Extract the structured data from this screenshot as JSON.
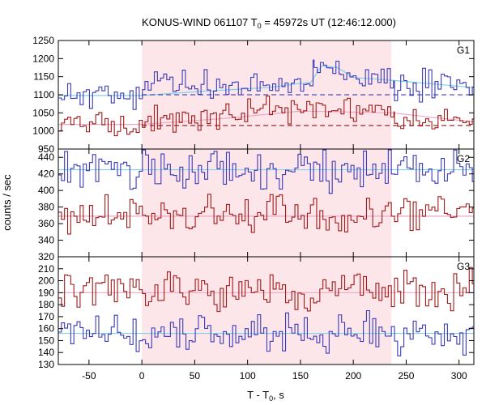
{
  "chart_data": {
    "type": "line",
    "title": "KONUS-WIND 061107 T",
    "title_sub": "0",
    "title_rest": " = 45972s UT (12:46:12.000)",
    "xlabel": "T - T",
    "xlabel_sub": "0",
    "xlabel_rest": ", s",
    "ylabel": "counts / sec",
    "xlim": [
      -79,
      314
    ],
    "shaded_interval": [
      0,
      236
    ],
    "bin_width": 2.944,
    "x_ticks": [
      -50,
      0,
      50,
      100,
      150,
      200,
      250,
      300
    ],
    "x_tick_labels": [
      "-50",
      "0",
      "50",
      "100",
      "150",
      "200",
      "250",
      "300"
    ],
    "colors": {
      "blue": "#3a3ab8",
      "red": "#a01a1a",
      "fit_blue": "#7fd0e8",
      "fit_red": "#f0a6c6",
      "bg_blue": "#2828a0",
      "bg_red": "#8b1010",
      "shade": "#fde6ea"
    },
    "panels": [
      {
        "label": "G1",
        "ylim": [
          950,
          1250
        ],
        "y_ticks": [
          950,
          1000,
          1050,
          1100,
          1150,
          1200,
          1250
        ],
        "y_tick_labels": [
          "950",
          "1000",
          "1050",
          "1100",
          "1150",
          "1200",
          "1250"
        ],
        "series": [
          {
            "color_key": "blue",
            "segments": [
              {
                "x0": -79,
                "x1": 0,
                "mean": 1098,
                "amp": 18,
                "seed": 11
              },
              {
                "x0": 0,
                "x1": 160,
                "mean": 1128,
                "amp": 20,
                "seed": 12
              },
              {
                "x0": 160,
                "x1": 185,
                "mean": 1182,
                "amp": 14,
                "seed": 13
              },
              {
                "x0": 185,
                "x1": 236,
                "mean": 1145,
                "amp": 18,
                "seed": 14
              },
              {
                "x0": 236,
                "x1": 314,
                "mean": 1130,
                "amp": 20,
                "seed": 15
              }
            ],
            "fit": [
              [
                -79,
                1098
              ],
              [
                0,
                1098
              ],
              [
                60,
                1110
              ],
              [
                120,
                1120
              ],
              [
                160,
                1135
              ],
              [
                170,
                1180
              ],
              [
                185,
                1175
              ],
              [
                200,
                1148
              ],
              [
                236,
                1140
              ],
              [
                314,
                1120
              ]
            ],
            "background": {
              "x0": 0,
              "x1": 314,
              "y": 1100
            }
          },
          {
            "color_key": "red",
            "segments": [
              {
                "x0": -79,
                "x1": 0,
                "mean": 1020,
                "amp": 14,
                "seed": 21
              },
              {
                "x0": 0,
                "x1": 100,
                "mean": 1038,
                "amp": 16,
                "seed": 22
              },
              {
                "x0": 100,
                "x1": 236,
                "mean": 1058,
                "amp": 16,
                "seed": 23
              },
              {
                "x0": 236,
                "x1": 314,
                "mean": 1030,
                "amp": 14,
                "seed": 24
              }
            ],
            "fit": [
              [
                -79,
                1018
              ],
              [
                0,
                1018
              ],
              [
                80,
                1035
              ],
              [
                150,
                1055
              ],
              [
                236,
                1050
              ],
              [
                314,
                1025
              ]
            ],
            "background": {
              "x0": 0,
              "x1": 314,
              "y": 1015
            }
          }
        ]
      },
      {
        "label": "G2",
        "ylim": [
          320,
          450
        ],
        "y_ticks": [
          320,
          340,
          360,
          380,
          400,
          420,
          440
        ],
        "y_tick_labels": [
          "320",
          "340",
          "360",
          "380",
          "400",
          "420",
          "440"
        ],
        "series": [
          {
            "color_key": "blue",
            "segments": [
              {
                "x0": -79,
                "x1": 314,
                "mean": 425,
                "amp": 12,
                "seed": 31
              }
            ],
            "fit": [
              [
                -79,
                425
              ],
              [
                314,
                425
              ]
            ]
          },
          {
            "color_key": "red",
            "segments": [
              {
                "x0": -79,
                "x1": 314,
                "mean": 369,
                "amp": 12,
                "seed": 41
              }
            ],
            "fit": [
              [
                -79,
                369
              ],
              [
                314,
                369
              ]
            ]
          }
        ]
      },
      {
        "label": "G3",
        "ylim": [
          130,
          220
        ],
        "y_ticks": [
          130,
          140,
          150,
          160,
          170,
          180,
          190,
          200,
          210
        ],
        "y_tick_labels": [
          "130",
          "140",
          "150",
          "160",
          "170",
          "180",
          "190",
          "200",
          "210"
        ],
        "series": [
          {
            "color_key": "red",
            "segments": [
              {
                "x0": -79,
                "x1": 314,
                "mean": 191,
                "amp": 8,
                "seed": 51
              }
            ],
            "fit": [
              [
                -79,
                190
              ],
              [
                314,
                190
              ]
            ]
          },
          {
            "color_key": "blue",
            "segments": [
              {
                "x0": -79,
                "x1": 314,
                "mean": 155,
                "amp": 8,
                "seed": 61
              }
            ],
            "fit": [
              [
                -79,
                156
              ],
              [
                314,
                156
              ]
            ]
          }
        ]
      }
    ]
  }
}
